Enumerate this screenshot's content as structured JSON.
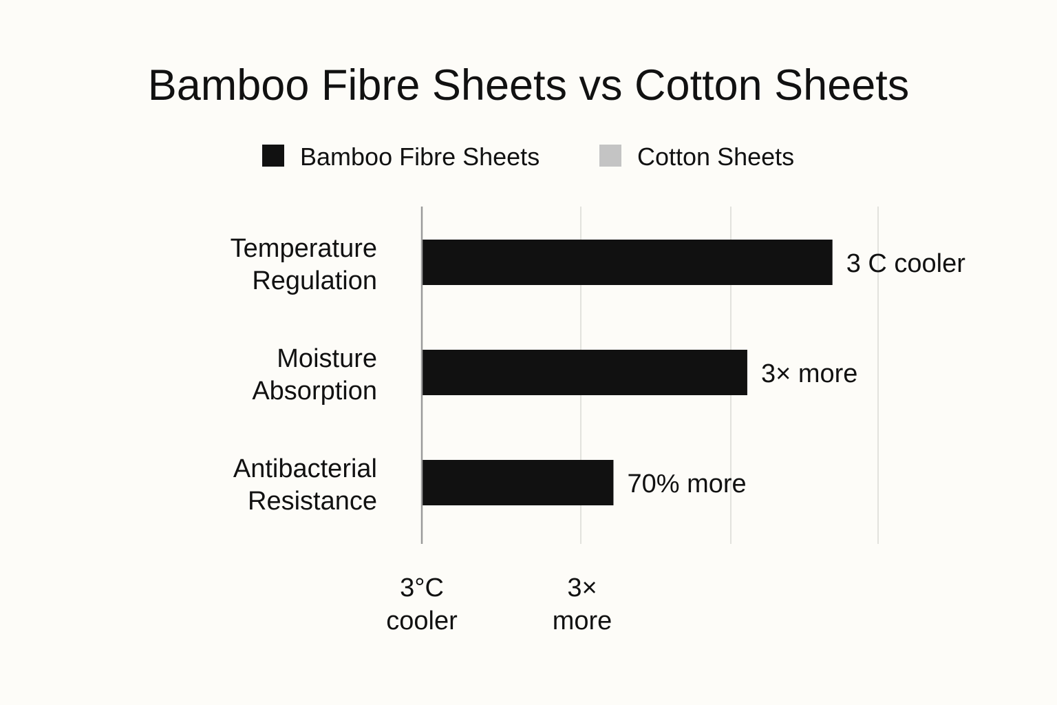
{
  "chart_data": {
    "type": "bar",
    "orientation": "horizontal",
    "title": "Bamboo Fibre Sheets vs Cotton Sheets",
    "legend": {
      "placement": "top-center",
      "entries": [
        {
          "name": "Bamboo Fibre Sheets",
          "color": "#111111"
        },
        {
          "name": "Cotton Sheets",
          "color": "#c4c4c4"
        }
      ]
    },
    "categories": [
      [
        "Temperature",
        "Regulation"
      ],
      [
        "Moisture",
        "Absorption"
      ],
      [
        "Antibacterial",
        "Resistance"
      ]
    ],
    "series": [
      {
        "name": "Bamboo Fibre Sheets",
        "color": "#111111",
        "values": [
          2.7,
          2.14,
          1.26
        ],
        "labels": [
          "3 C cooler",
          "3× more",
          "70% more"
        ]
      }
    ],
    "x_tick_labels": [
      [
        "3°C",
        "cooler"
      ],
      [
        "3×",
        "more"
      ]
    ],
    "xlim": [
      0,
      3
    ],
    "grid": true
  }
}
